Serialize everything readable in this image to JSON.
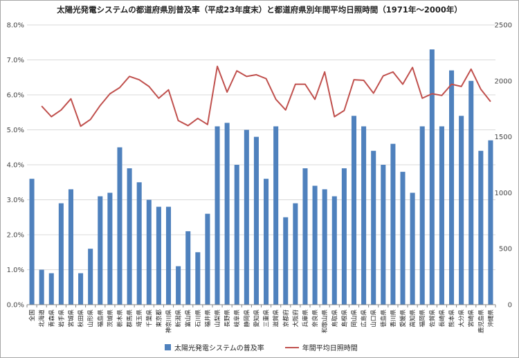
{
  "chart_data": {
    "type": "bar+line",
    "title": "太陽光発電システムの都道府県別普及率（平成23年度末）と都道府県別年間平均日照時間（1971年～2000年）",
    "categories": [
      "全国",
      "北海道",
      "青森県",
      "岩手県",
      "宮城県",
      "秋田県",
      "山形県",
      "福島県",
      "茨城県",
      "栃木県",
      "群馬県",
      "埼玉県",
      "千葉県",
      "東京都",
      "神奈川県",
      "新潟県",
      "富山県",
      "石川県",
      "福井県",
      "山梨県",
      "長野県",
      "岐阜県",
      "静岡県",
      "愛知県",
      "三重県",
      "滋賀県",
      "京都府",
      "大阪府",
      "兵庫県",
      "奈良県",
      "和歌山県",
      "鳥取県",
      "島根県",
      "岡山県",
      "広島県",
      "山口県",
      "徳島県",
      "香川県",
      "愛媛県",
      "高知県",
      "福岡県",
      "佐賀県",
      "長崎県",
      "熊本県",
      "大分県",
      "宮崎県",
      "鹿児島県",
      "沖縄県"
    ],
    "series": [
      {
        "name": "太陽光発電システムの普及率",
        "type": "bar",
        "axis": "left",
        "color": "#4f81bd",
        "values": [
          3.6,
          1.0,
          0.9,
          2.9,
          3.3,
          0.9,
          1.6,
          3.1,
          3.2,
          4.5,
          3.9,
          3.5,
          3.0,
          2.8,
          2.8,
          1.1,
          2.1,
          1.5,
          2.6,
          5.1,
          5.2,
          4.0,
          5.0,
          4.8,
          3.6,
          5.1,
          2.5,
          2.9,
          3.9,
          3.4,
          3.3,
          3.1,
          3.9,
          5.4,
          5.1,
          4.4,
          4.0,
          4.6,
          3.8,
          3.2,
          5.1,
          7.3,
          5.1,
          6.7,
          5.4,
          6.4,
          4.4,
          4.7
        ]
      },
      {
        "name": "年間平均日照時間",
        "type": "line",
        "axis": "right",
        "color": "#c0504d",
        "values": [
          null,
          1775,
          1680,
          1740,
          1840,
          1595,
          1655,
          1780,
          1885,
          1940,
          2040,
          2010,
          1950,
          1845,
          1920,
          1645,
          1600,
          1665,
          1610,
          2130,
          1900,
          2090,
          2040,
          2055,
          2020,
          1835,
          1740,
          1970,
          1970,
          1835,
          2080,
          1680,
          1735,
          2010,
          2005,
          1890,
          2045,
          2080,
          1970,
          2120,
          1845,
          1885,
          1870,
          1970,
          1950,
          2105,
          1925,
          1815
        ]
      }
    ],
    "left_axis": {
      "min": 0,
      "max": 8.0,
      "step": 1.0,
      "tick_labels": [
        "0.0%",
        "1.0%",
        "2.0%",
        "3.0%",
        "4.0%",
        "5.0%",
        "6.0%",
        "7.0%",
        "8.0%"
      ]
    },
    "right_axis": {
      "min": 0,
      "max": 2500,
      "step": 500,
      "tick_labels": [
        "0",
        "500",
        "1000",
        "1500",
        "2000",
        "2500"
      ]
    },
    "grid": true,
    "legend": "bottom",
    "legend_labels": [
      "太陽光発電システムの普及率",
      "年間平均日照時間"
    ]
  }
}
